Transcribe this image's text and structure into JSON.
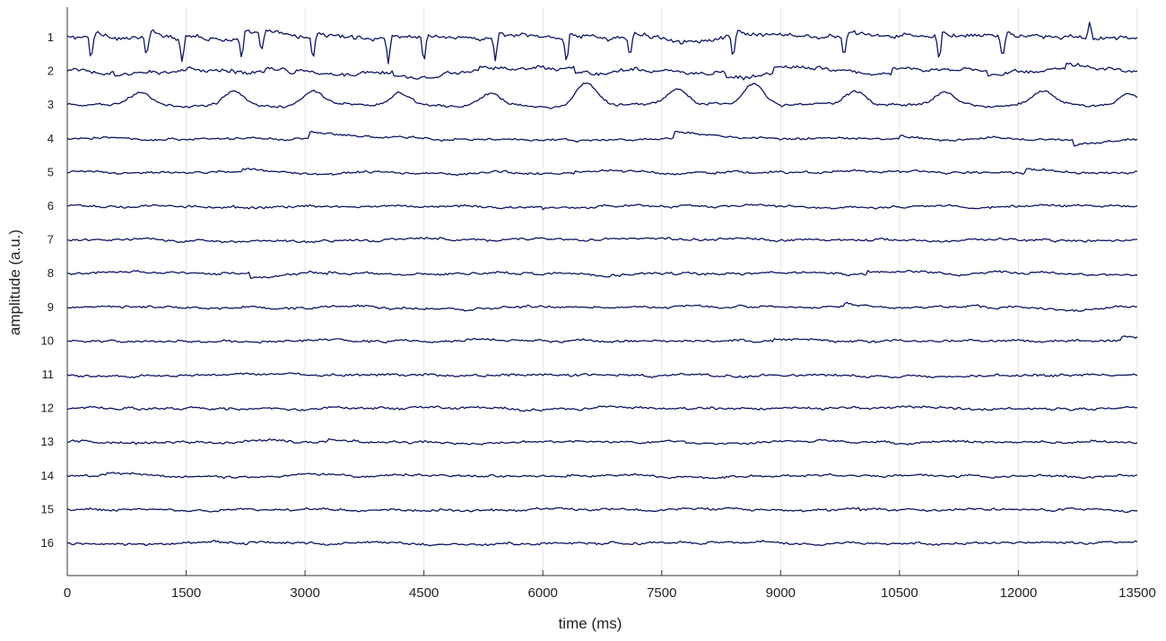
{
  "chart_data": {
    "type": "line",
    "title": "",
    "xlabel": "time (ms)",
    "ylabel": "amplitude (a.u.)",
    "xlim": [
      0,
      13500
    ],
    "x_ticks": [
      0,
      1500,
      3000,
      4500,
      6000,
      7500,
      9000,
      10500,
      12000,
      13500
    ],
    "x_tick_labels": [
      "0",
      "1500",
      "3000",
      "4500",
      "6000",
      "7500",
      "9000",
      "10500",
      "12000",
      "13500"
    ],
    "grid": "vertical",
    "line_color": "#0f1563",
    "channels": [
      {
        "label": "1",
        "profile": "spiky",
        "events": [
          {
            "t": 300,
            "a": -28
          },
          {
            "t": 1000,
            "a": -24
          },
          {
            "t": 1450,
            "a": -26
          },
          {
            "t": 2200,
            "a": -25
          },
          {
            "t": 2450,
            "a": -24
          },
          {
            "t": 3100,
            "a": -27
          },
          {
            "t": 4050,
            "a": -25
          },
          {
            "t": 4500,
            "a": -28
          },
          {
            "t": 5400,
            "a": -25
          },
          {
            "t": 6300,
            "a": -27
          },
          {
            "t": 7100,
            "a": -26
          },
          {
            "t": 8400,
            "a": -28
          },
          {
            "t": 9800,
            "a": -24
          },
          {
            "t": 11000,
            "a": -27
          },
          {
            "t": 11800,
            "a": -25
          },
          {
            "t": 12900,
            "a": 18
          }
        ]
      },
      {
        "label": "2",
        "profile": "blocky",
        "events": [
          {
            "t": 600,
            "a": -6
          },
          {
            "t": 2500,
            "a": 5
          },
          {
            "t": 4100,
            "a": -5
          },
          {
            "t": 5200,
            "a": 4
          },
          {
            "t": 6400,
            "a": -7
          },
          {
            "t": 8300,
            "a": -8
          },
          {
            "t": 8900,
            "a": 9
          },
          {
            "t": 10400,
            "a": 5
          },
          {
            "t": 11600,
            "a": -5
          },
          {
            "t": 12600,
            "a": 6
          }
        ]
      },
      {
        "label": "3",
        "profile": "bumpy",
        "events": [
          {
            "t": 900,
            "a": 14
          },
          {
            "t": 2100,
            "a": 16
          },
          {
            "t": 3100,
            "a": 15
          },
          {
            "t": 4200,
            "a": 13
          },
          {
            "t": 5350,
            "a": 14
          },
          {
            "t": 6550,
            "a": 24
          },
          {
            "t": 7700,
            "a": 17
          },
          {
            "t": 8650,
            "a": 22
          },
          {
            "t": 9950,
            "a": 15
          },
          {
            "t": 11050,
            "a": 14
          },
          {
            "t": 12300,
            "a": 15
          },
          {
            "t": 13400,
            "a": 13
          }
        ]
      },
      {
        "label": "4",
        "profile": "calm",
        "events": [
          {
            "t": 3050,
            "a": 8
          },
          {
            "t": 7650,
            "a": 7
          },
          {
            "t": 10500,
            "a": 3
          },
          {
            "t": 12700,
            "a": -6
          }
        ]
      },
      {
        "label": "5",
        "profile": "calm",
        "events": [
          {
            "t": 2200,
            "a": 3
          },
          {
            "t": 6400,
            "a": 2
          },
          {
            "t": 12100,
            "a": 5
          }
        ]
      },
      {
        "label": "6",
        "profile": "calm",
        "events": [
          {
            "t": 2100,
            "a": -3
          },
          {
            "t": 6000,
            "a": -2
          }
        ]
      },
      {
        "label": "7",
        "profile": "calm",
        "events": [
          {
            "t": 12400,
            "a": -2
          }
        ]
      },
      {
        "label": "8",
        "profile": "calm",
        "events": [
          {
            "t": 2300,
            "a": -5
          },
          {
            "t": 3300,
            "a": 3
          },
          {
            "t": 10100,
            "a": 4
          }
        ]
      },
      {
        "label": "9",
        "profile": "calm",
        "events": [
          {
            "t": 9800,
            "a": 4
          },
          {
            "t": 12300,
            "a": -3
          }
        ]
      },
      {
        "label": "10",
        "profile": "calm",
        "events": [
          {
            "t": 8900,
            "a": 3
          },
          {
            "t": 13300,
            "a": 4
          }
        ]
      },
      {
        "label": "11",
        "profile": "calm",
        "events": []
      },
      {
        "label": "12",
        "profile": "calm",
        "events": [
          {
            "t": 6700,
            "a": 2
          }
        ]
      },
      {
        "label": "13",
        "profile": "calm",
        "events": [
          {
            "t": 3300,
            "a": 3
          },
          {
            "t": 7800,
            "a": -2
          }
        ]
      },
      {
        "label": "14",
        "profile": "calm",
        "events": [
          {
            "t": 500,
            "a": 2
          }
        ]
      },
      {
        "label": "15",
        "profile": "calm",
        "events": [
          {
            "t": 10000,
            "a": -2
          }
        ]
      },
      {
        "label": "16",
        "profile": "calm",
        "events": [
          {
            "t": 2300,
            "a": 2
          }
        ]
      }
    ]
  }
}
